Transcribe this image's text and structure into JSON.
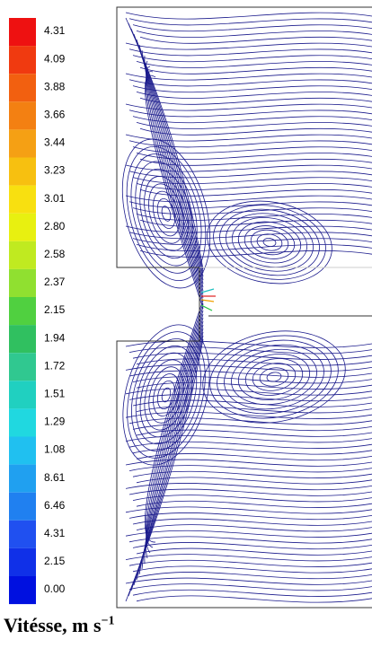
{
  "legend": {
    "labels": [
      "4.31",
      "4.09",
      "3.88",
      "3.66",
      "3.44",
      "3.23",
      "3.01",
      "2.80",
      "2.58",
      "2.37",
      "2.15",
      "1.94",
      "1.72",
      "1.51",
      "1.29",
      "1.08",
      "8.61",
      "6.46",
      "4.31",
      "2.15",
      "0.00"
    ]
  },
  "caption": {
    "title": "Vitésse, m s",
    "superscript": "−1"
  }
}
